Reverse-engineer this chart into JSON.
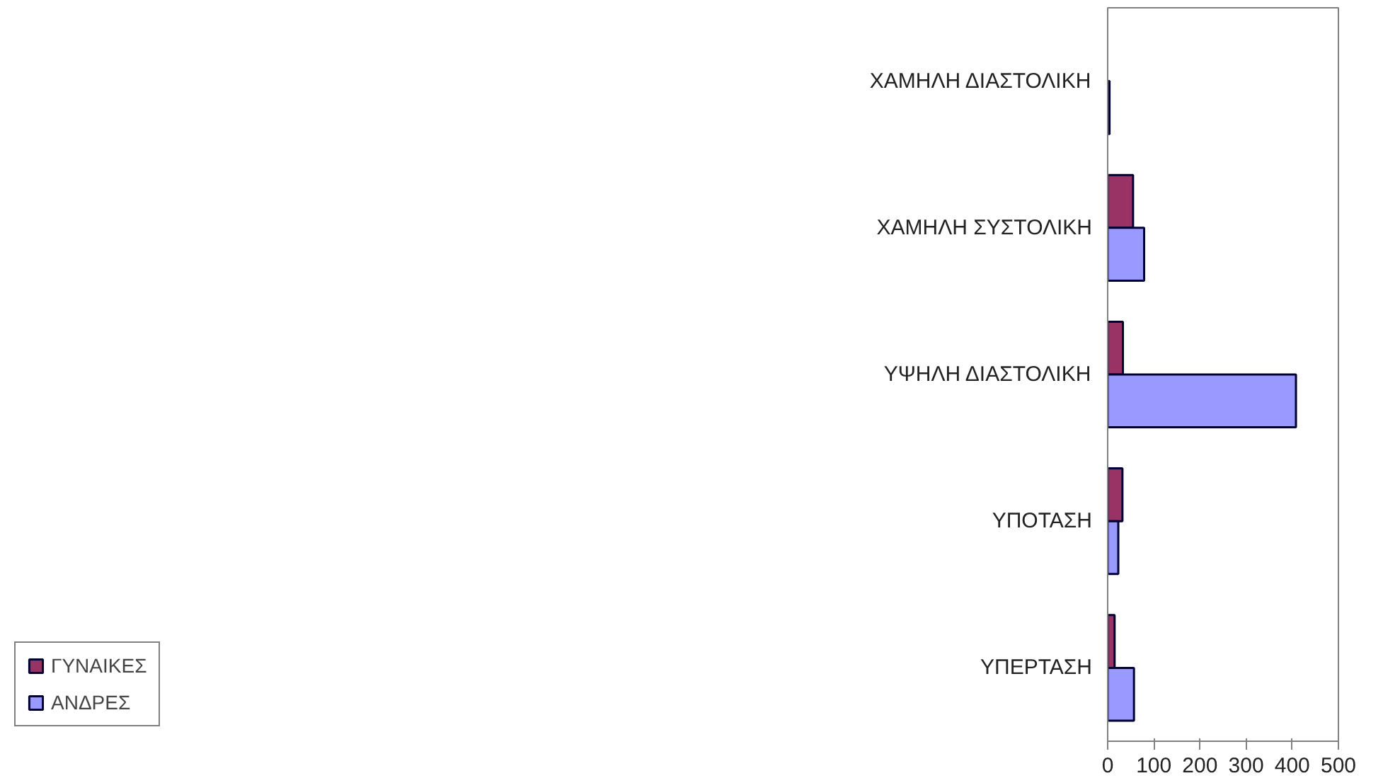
{
  "chart_data": {
    "type": "bar",
    "orientation": "horizontal",
    "categories": [
      "ΧΑΜΗΛΗ ΔΙΑΣΤΟΛΙΚΗ",
      "ΧΑΜΗΛΗ ΣΥΣΤΟΛΙΚΗ",
      "ΥΨΗΛΗ ΔΙΑΣΤΟΛΙΚΗ",
      "ΥΠΟΤΑΣΗ",
      "ΥΠΕΡΤΑΣΗ"
    ],
    "series": [
      {
        "name": "ΓΥΝΑΙΚΕΣ",
        "color": "#993366",
        "values": [
          null,
          55,
          33,
          32,
          15
        ]
      },
      {
        "name": "ΑΝΔΡΕΣ",
        "color": "#9999ff",
        "values": [
          4,
          79,
          408,
          23,
          57
        ]
      }
    ],
    "xlim": [
      0,
      500
    ],
    "xticks": [
      0,
      100,
      200,
      300,
      400,
      500
    ],
    "grid": false,
    "legend": "bottom left"
  }
}
